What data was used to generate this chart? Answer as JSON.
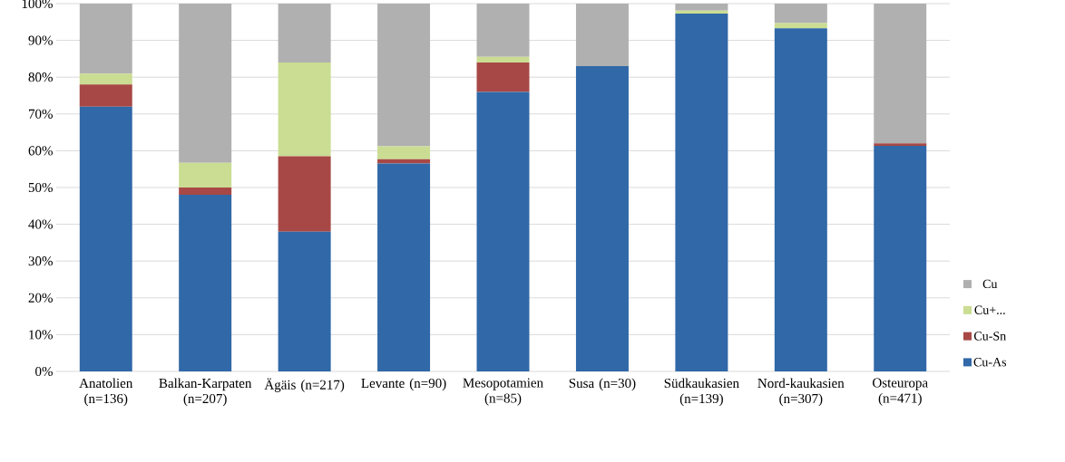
{
  "chart_data": {
    "type": "bar",
    "stacked": true,
    "categories": [
      "Anatolien (n=136)",
      "Balkan-Karpaten (n=207)",
      "Ägäis (n=217)",
      "Levante (n=90)",
      "Mesopotamien (n=85)",
      "Susa (n=30)",
      "Südkaukasien (n=139)",
      "Nord-kaukasien (n=307)",
      "Osteuropa (n=471)"
    ],
    "series": [
      {
        "name": "Cu-As",
        "color": "#3068a8",
        "values": [
          72,
          48,
          38,
          56.5,
          76,
          83,
          97.3,
          93.3,
          61.3
        ]
      },
      {
        "name": "Cu-Sn",
        "color": "#a84846",
        "values": [
          6,
          2,
          20.5,
          1.2,
          8,
          0,
          0,
          0,
          0.7
        ]
      },
      {
        "name": "Cu+...",
        "color": "#cadd92",
        "values": [
          3,
          6.7,
          25.5,
          3.5,
          1.5,
          0,
          0.8,
          1.4,
          0
        ]
      },
      {
        "name": "Cu",
        "color": "#b0b0b0",
        "values": [
          19,
          43.3,
          16,
          38.8,
          14.5,
          17,
          1.9,
          5.3,
          38
        ]
      }
    ],
    "ylim": [
      0,
      100
    ],
    "yticks": [
      {
        "value": 0,
        "label": "0%"
      },
      {
        "value": 10,
        "label": "10%"
      },
      {
        "value": 20,
        "label": "20%"
      },
      {
        "value": 30,
        "label": "30%"
      },
      {
        "value": 40,
        "label": "40%"
      },
      {
        "value": 50,
        "label": "50%"
      },
      {
        "value": 60,
        "label": "60%"
      },
      {
        "value": 70,
        "label": "70%"
      },
      {
        "value": 80,
        "label": "80%"
      },
      {
        "value": 90,
        "label": "90%"
      },
      {
        "value": 100,
        "label": "100%"
      }
    ],
    "grid": "y",
    "legend": "right"
  }
}
